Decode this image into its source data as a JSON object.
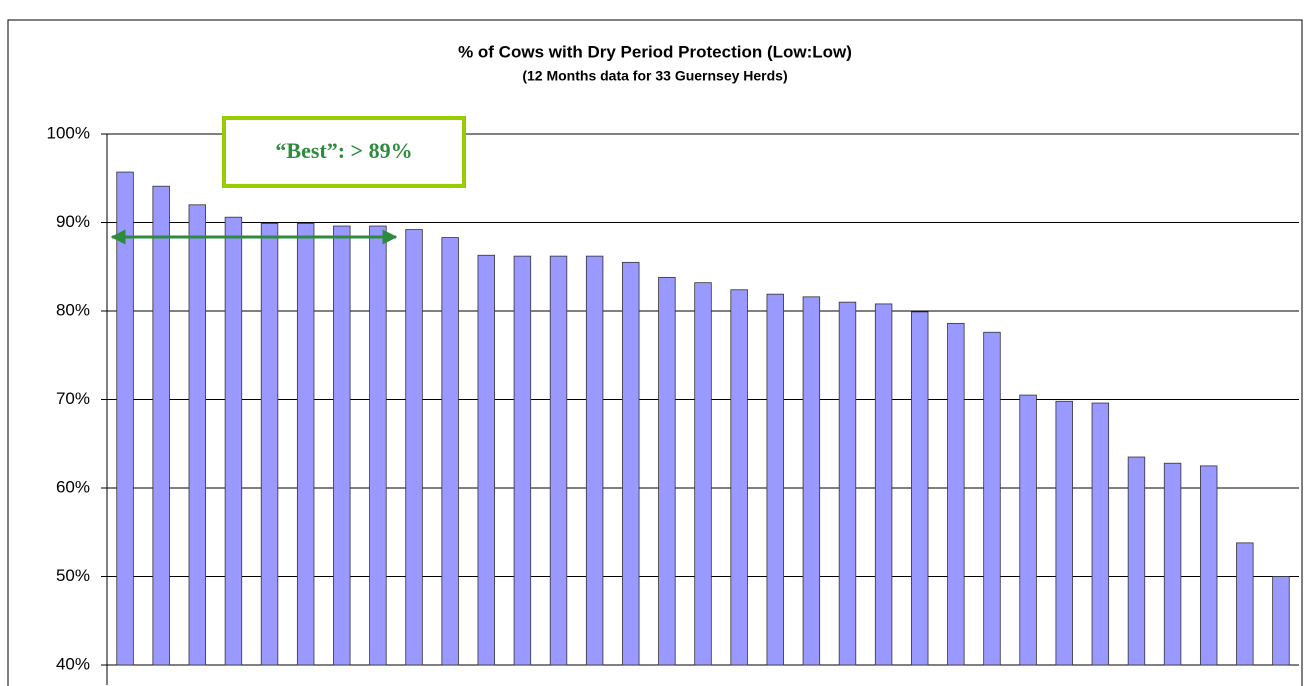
{
  "chart_data": {
    "type": "bar",
    "title": "% of Cows with Dry Period Protection (Low:Low)",
    "subtitle": "(12 Months data for 33 Guernsey Herds)",
    "annotation": "“Best”:  > 89%",
    "values": [
      95.7,
      94.1,
      92.0,
      90.6,
      89.9,
      89.9,
      89.6,
      89.6,
      89.2,
      88.3,
      86.3,
      86.2,
      86.2,
      86.2,
      85.5,
      83.8,
      83.2,
      82.4,
      81.9,
      81.6,
      81.0,
      80.8,
      79.9,
      78.6,
      77.6,
      70.5,
      69.8,
      69.6,
      63.5,
      62.8,
      62.5,
      53.8,
      50.0
    ],
    "color": "#9999ff",
    "ylim": [
      40,
      100
    ],
    "yticks": [
      {
        "value": 40,
        "label": "40%"
      },
      {
        "value": 50,
        "label": "50%"
      },
      {
        "value": 60,
        "label": "60%"
      },
      {
        "value": 70,
        "label": "70%"
      },
      {
        "value": 80,
        "label": "80%"
      },
      {
        "value": 90,
        "label": "90%"
      },
      {
        "value": 100,
        "label": "100%"
      }
    ],
    "grid": true
  }
}
